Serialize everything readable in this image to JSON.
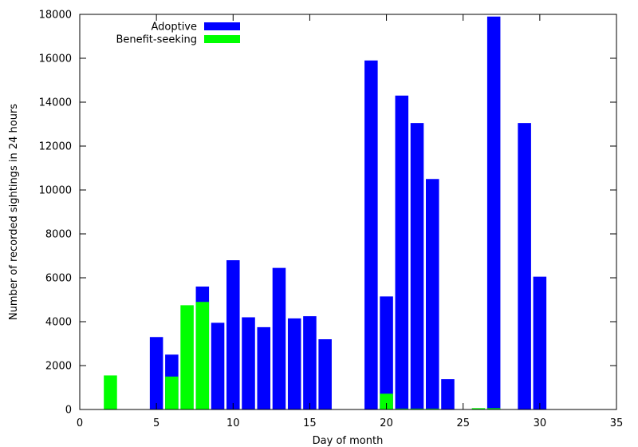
{
  "chart_data": {
    "type": "bar",
    "xlabel": "Day of month",
    "ylabel": "Number of recorded sightings in 24 hours",
    "xlim": [
      0,
      35
    ],
    "ylim": [
      0,
      18000
    ],
    "xticks": [
      0,
      5,
      10,
      15,
      20,
      25,
      30,
      35
    ],
    "yticks": [
      0,
      2000,
      4000,
      6000,
      8000,
      10000,
      12000,
      14000,
      16000,
      18000
    ],
    "grid": false,
    "legend_position": "top-left",
    "x": [
      2,
      5,
      6,
      7,
      8,
      9,
      10,
      11,
      12,
      13,
      14,
      15,
      16,
      19,
      20,
      21,
      22,
      23,
      24,
      26,
      27,
      29,
      30
    ],
    "series": [
      {
        "name": "Adoptive",
        "color": "#0000ff",
        "values": [
          0,
          3300,
          2500,
          0,
          5600,
          3950,
          6800,
          4200,
          3750,
          6450,
          4150,
          4250,
          3200,
          15900,
          5150,
          14300,
          13050,
          10500,
          1380,
          0,
          17900,
          13050,
          6050
        ]
      },
      {
        "name": "Benefit-seeking",
        "color": "#00ff00",
        "values": [
          1550,
          0,
          1500,
          4750,
          4900,
          0,
          0,
          0,
          0,
          0,
          0,
          0,
          0,
          0,
          720,
          40,
          40,
          40,
          0,
          60,
          60,
          0,
          0
        ]
      }
    ]
  }
}
